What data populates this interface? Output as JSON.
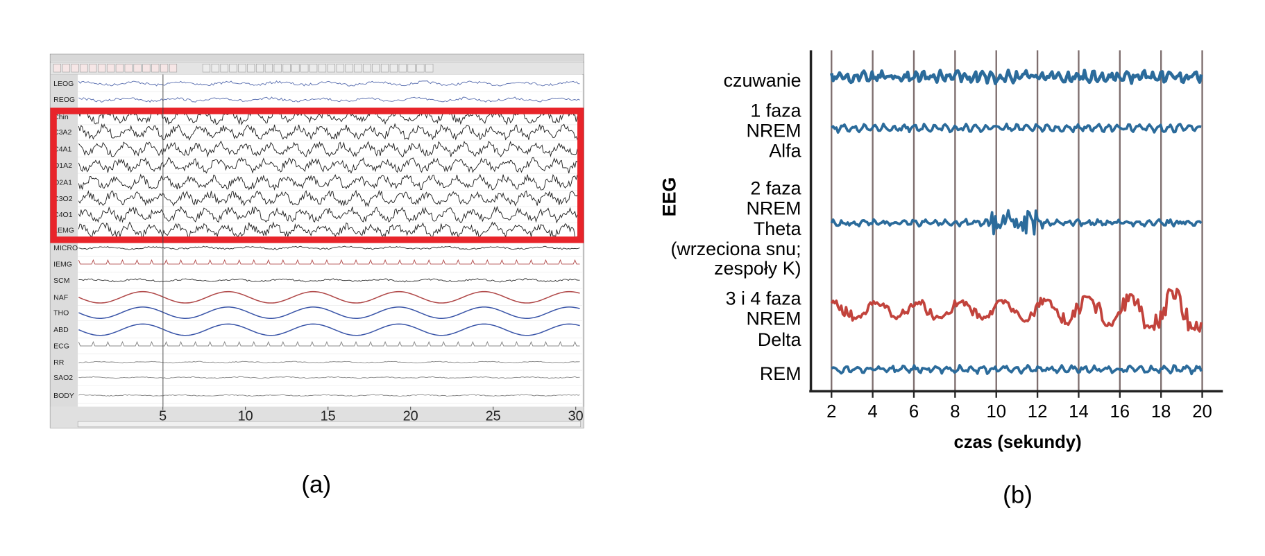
{
  "panel_a": {
    "channels": [
      "LEOG",
      "REOG",
      "Chin",
      "C3A2",
      "C4A1",
      "O1A2",
      "O2A1",
      "C3O2",
      "C4O1",
      "LEMG",
      "MICRO",
      "IEMG",
      "SCM",
      "NAF",
      "THO",
      "ABD",
      "ECG",
      "RR",
      "SAO2",
      "BODY"
    ],
    "xlim": [
      0,
      30
    ],
    "xticks": [
      5,
      10,
      15,
      20,
      25,
      30
    ],
    "caption": "(a)"
  },
  "chart_data": {
    "type": "line",
    "ylabel": "EEG",
    "xlabel": "czas (sekundy)",
    "xlim": [
      1,
      21
    ],
    "xticks": [
      2,
      4,
      6,
      8,
      10,
      12,
      14,
      16,
      18,
      20
    ],
    "grid": true,
    "stages": [
      {
        "label": [
          "czuwanie"
        ],
        "color": "#2b6b9b"
      },
      {
        "label": [
          "1 faza",
          "NREM",
          "Alfa"
        ],
        "color": "#2b6b9b"
      },
      {
        "label": [
          "2 faza",
          "NREM",
          "Theta",
          "(wrzeciona snu;",
          "zespoły K)"
        ],
        "color": "#2b6b9b"
      },
      {
        "label": [
          "3 i 4 faza",
          "NREM",
          "Delta"
        ],
        "color": "#c2433c"
      },
      {
        "label": [
          "REM"
        ],
        "color": "#2b6b9b"
      }
    ],
    "caption": "(b)"
  }
}
